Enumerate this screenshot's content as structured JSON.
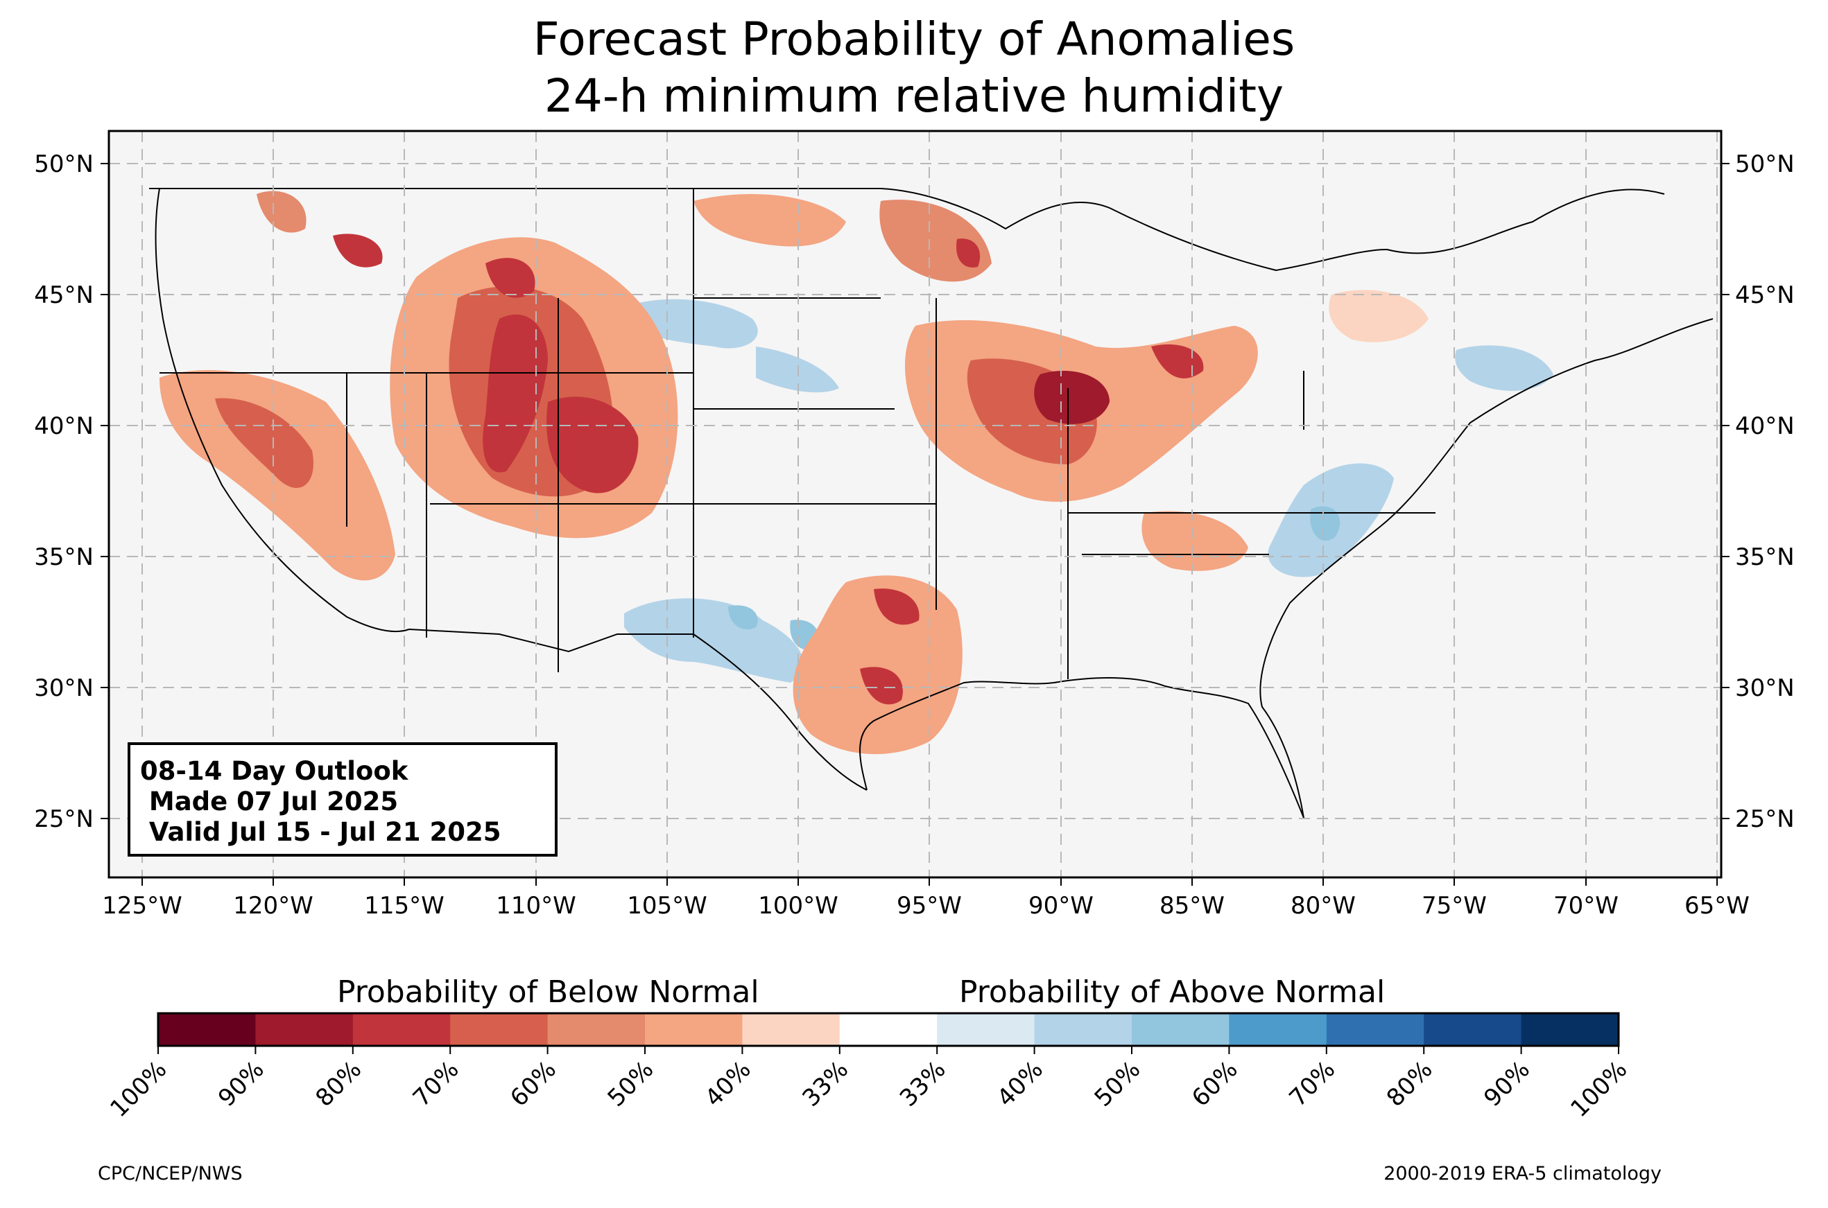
{
  "title_line1": "Forecast Probability of Anomalies",
  "title_line2": "24-h minimum relative humidity",
  "longitude_ticks": [
    "125°W",
    "120°W",
    "115°W",
    "110°W",
    "105°W",
    "100°W",
    "95°W",
    "90°W",
    "85°W",
    "80°W",
    "75°W",
    "70°W",
    "65°W"
  ],
  "latitude_ticks": [
    "50°N",
    "45°N",
    "40°N",
    "35°N",
    "30°N",
    "25°N"
  ],
  "info_box": {
    "line1": "08-14 Day Outlook",
    "line2": " Made 07 Jul 2025",
    "line3": " Valid Jul 15 - Jul 21 2025"
  },
  "colorbar": {
    "below_label": "Probability of Below Normal",
    "above_label": "Probability of Above Normal",
    "tick_labels": [
      "100%",
      "90%",
      "80%",
      "70%",
      "60%",
      "50%",
      "40%",
      "33%",
      "33%",
      "40%",
      "50%",
      "60%",
      "70%",
      "80%",
      "90%",
      "100%"
    ],
    "colors": [
      "#67001f",
      "#9e1a2c",
      "#c2343b",
      "#d6604d",
      "#e48a6d",
      "#f4a582",
      "#fbd5c1",
      "#ffffff",
      "#dbe9f2",
      "#b3d3e8",
      "#92c5de",
      "#4d9bcb",
      "#2f71b0",
      "#174a8b",
      "#053061"
    ]
  },
  "credit_left": "CPC/NCEP/NWS",
  "credit_right": "2000-2019 ERA-5 climatology"
}
